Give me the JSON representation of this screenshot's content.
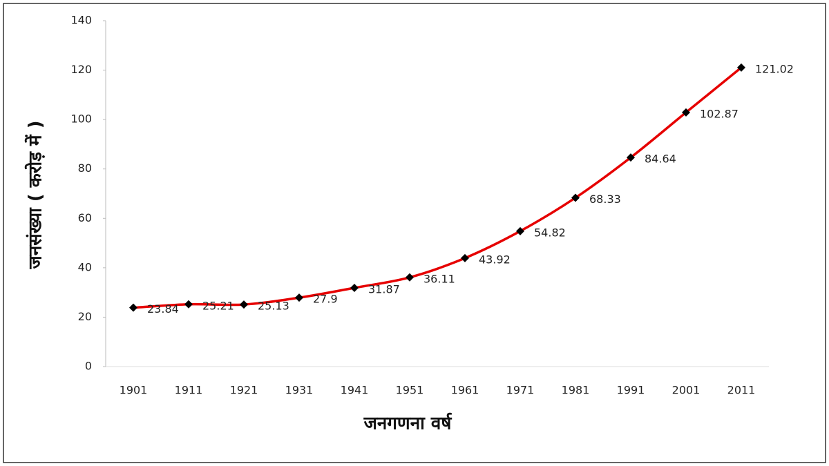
{
  "chart_data": {
    "type": "line",
    "x_label": "जनगणना वर्ष",
    "y_label": "जनसंख्या ( करोड़ में )",
    "categories": [
      "1901",
      "1911",
      "1921",
      "1931",
      "1941",
      "1951",
      "1961",
      "1971",
      "1981",
      "1991",
      "2001",
      "2011"
    ],
    "series": [
      {
        "name": "जनसंख्या",
        "color": "#e60000",
        "marker_color": "#000000",
        "values": [
          23.84,
          25.21,
          25.13,
          27.9,
          31.87,
          36.11,
          43.92,
          54.82,
          68.33,
          84.64,
          102.87,
          121.02
        ]
      }
    ],
    "ylim": [
      0,
      140
    ],
    "yticks": [
      0,
      20,
      40,
      60,
      80,
      100,
      120,
      140
    ],
    "grid": false
  }
}
